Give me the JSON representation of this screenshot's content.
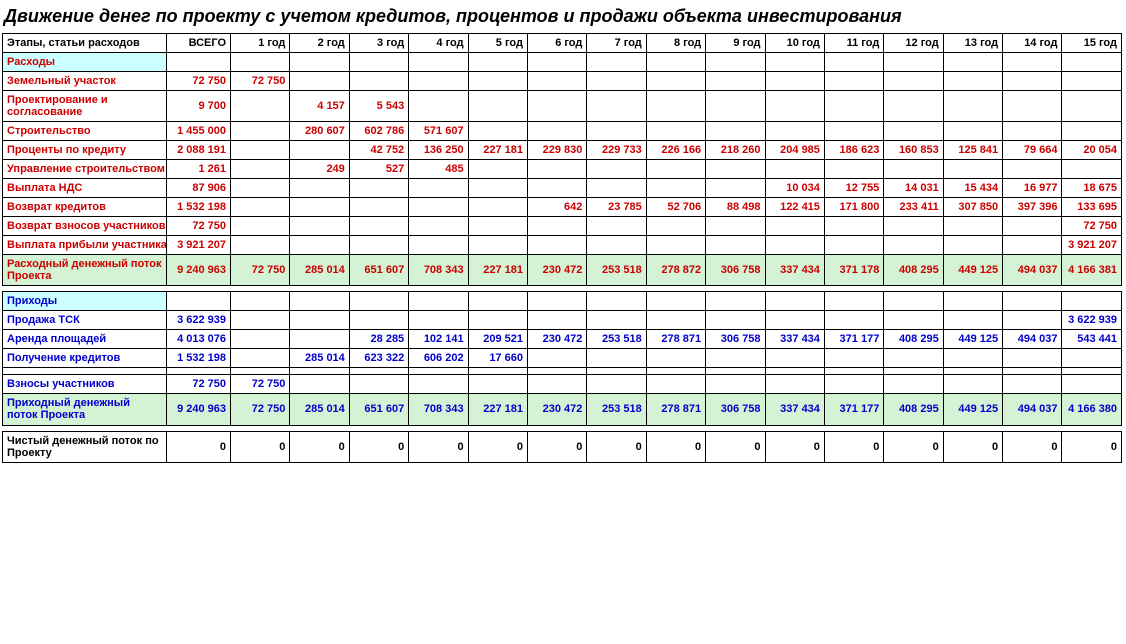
{
  "title": "Движение денег по проекту с учетом кредитов, процентов и продажи объекта инвестирования",
  "headers": {
    "label": "Этапы, статьи расходов",
    "total": "ВСЕГО",
    "years": [
      "1 год",
      "2 год",
      "3 год",
      "4 год",
      "5 год",
      "6 год",
      "7 год",
      "8 год",
      "9 год",
      "10 год",
      "11 год",
      "12 год",
      "13 год",
      "14 год",
      "15 год"
    ]
  },
  "expenses": {
    "section_label": "Расходы",
    "rows": [
      {
        "label": "Земельный участок",
        "total": "72 750",
        "y": [
          "72 750",
          "",
          "",
          "",
          "",
          "",
          "",
          "",
          "",
          "",
          "",
          "",
          "",
          "",
          ""
        ]
      },
      {
        "label": "Проектирование и согласование",
        "wrap": true,
        "total": "9 700",
        "y": [
          "",
          "4 157",
          "5 543",
          "",
          "",
          "",
          "",
          "",
          "",
          "",
          "",
          "",
          "",
          "",
          ""
        ]
      },
      {
        "label": "Строительство",
        "total": "1 455 000",
        "y": [
          "",
          "280 607",
          "602 786",
          "571 607",
          "",
          "",
          "",
          "",
          "",
          "",
          "",
          "",
          "",
          "",
          ""
        ]
      },
      {
        "label": "Проценты по кредиту",
        "total": "2 088 191",
        "y": [
          "",
          "",
          "42 752",
          "136 250",
          "227 181",
          "229 830",
          "229 733",
          "226 166",
          "218 260",
          "204 985",
          "186 623",
          "160 853",
          "125 841",
          "79 664",
          "20 054"
        ]
      },
      {
        "label": "Управление строительством",
        "total": "1 261",
        "y": [
          "",
          "249",
          "527",
          "485",
          "",
          "",
          "",
          "",
          "",
          "",
          "",
          "",
          "",
          "",
          ""
        ]
      },
      {
        "label": "Выплата НДС",
        "total": "87 906",
        "y": [
          "",
          "",
          "",
          "",
          "",
          "",
          "",
          "",
          "",
          "10 034",
          "12 755",
          "14 031",
          "15 434",
          "16 977",
          "18 675"
        ]
      },
      {
        "label": "Возврат кредитов",
        "total": "1 532 198",
        "y": [
          "",
          "",
          "",
          "",
          "",
          "642",
          "23 785",
          "52 706",
          "88 498",
          "122 415",
          "171 800",
          "233 411",
          "307 850",
          "397 396",
          "133 695"
        ]
      },
      {
        "label": "Возврат взносов участников",
        "total": "72 750",
        "y": [
          "",
          "",
          "",
          "",
          "",
          "",
          "",
          "",
          "",
          "",
          "",
          "",
          "",
          "",
          "72 750"
        ]
      },
      {
        "label": "Выплата прибыли участникам",
        "total": "3 921 207",
        "y": [
          "",
          "",
          "",
          "",
          "",
          "",
          "",
          "",
          "",
          "",
          "",
          "",
          "",
          "",
          "3 921 207"
        ]
      }
    ],
    "subtotal": {
      "label": "Расходный денежный поток Проекта",
      "total": "9 240 963",
      "y": [
        "72 750",
        "285 014",
        "651 607",
        "708 343",
        "227 181",
        "230 472",
        "253 518",
        "278 872",
        "306 758",
        "337 434",
        "371 178",
        "408 295",
        "449 125",
        "494 037",
        "4 166 381"
      ]
    }
  },
  "income": {
    "section_label": "Приходы",
    "rows": [
      {
        "label": "Продажа  ТСК",
        "total": "3 622 939",
        "y": [
          "",
          "",
          "",
          "",
          "",
          "",
          "",
          "",
          "",
          "",
          "",
          "",
          "",
          "",
          "3 622 939"
        ]
      },
      {
        "label": "Аренда площадей",
        "total": "4 013 076",
        "y": [
          "",
          "",
          "28 285",
          "102 141",
          "209 521",
          "230 472",
          "253 518",
          "278 871",
          "306 758",
          "337 434",
          "371 177",
          "408 295",
          "449 125",
          "494 037",
          "543 441"
        ]
      },
      {
        "label": "Получение кредитов",
        "total": "1 532 198",
        "y": [
          "",
          "285 014",
          "623 322",
          "606 202",
          "17 660",
          "",
          "",
          "",
          "",
          "",
          "",
          "",
          "",
          "",
          ""
        ]
      },
      {
        "label": "",
        "total": "",
        "y": [
          "",
          "",
          "",
          "",
          "",
          "",
          "",
          "",
          "",
          "",
          "",
          "",
          "",
          "",
          ""
        ],
        "blank": true
      },
      {
        "label": "Взносы участников",
        "total": "72 750",
        "y": [
          "72 750",
          "",
          "",
          "",
          "",
          "",
          "",
          "",
          "",
          "",
          "",
          "",
          "",
          "",
          ""
        ]
      }
    ],
    "subtotal": {
      "label": "Приходный денежный поток Проекта",
      "total": "9 240 963",
      "y": [
        "72 750",
        "285 014",
        "651 607",
        "708 343",
        "227 181",
        "230 472",
        "253 518",
        "278 871",
        "306 758",
        "337 434",
        "371 177",
        "408 295",
        "449 125",
        "494 037",
        "4 166 380"
      ]
    }
  },
  "net": {
    "label": "Чистый денежный поток по Проекту",
    "total": "0",
    "y": [
      "0",
      "0",
      "0",
      "0",
      "0",
      "0",
      "0",
      "0",
      "0",
      "0",
      "0",
      "0",
      "0",
      "0",
      "0"
    ]
  }
}
